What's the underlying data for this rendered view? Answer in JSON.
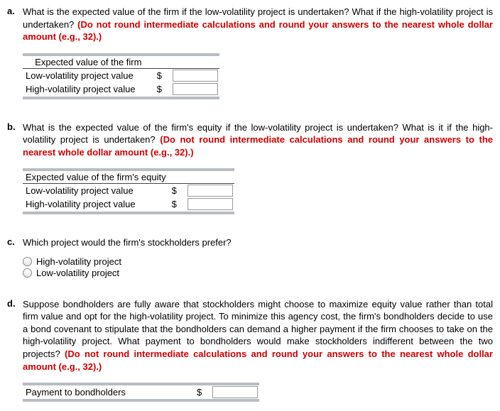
{
  "a": {
    "letter": "a.",
    "prompt_start": "What is the expected value of the firm if the low-volatility project is undertaken? What if the high-volatility project is undertaken? ",
    "hint": "(Do not round intermediate calculations and round your answers to the nearest whole dollar amount (e.g., 32).)",
    "table_title": "Expected value of the firm",
    "row1_label": "Low-volatility project value",
    "row2_label": "High-volatility project value",
    "currency": "$"
  },
  "b": {
    "letter": "b.",
    "prompt_start": "What is the expected value of the firm's equity if the low-volatility project is undertaken? What is it if the high-volatility project is undertaken? ",
    "hint": "(Do not round intermediate calculations and round your answers to the nearest whole dollar amount (e.g., 32).)",
    "table_title": "Expected value of the firm's equity",
    "row1_label": "Low-volatility project value",
    "row2_label": "High-volatility project value",
    "currency": "$"
  },
  "c": {
    "letter": "c.",
    "prompt": "Which project would the firm's stockholders prefer?",
    "opt1": "High-volatility project",
    "opt2": "Low-volatility project"
  },
  "d": {
    "letter": "d.",
    "prompt_start": "Suppose bondholders are fully aware that stockholders might choose to maximize equity value rather than total firm value and opt for the high-volatility project. To minimize this agency cost, the firm's bondholders decide to use a bond covenant to stipulate that the bondholders can demand a higher payment if the firm chooses to take on the high-volatility project. What payment to bondholders would make stockholders indifferent between the two projects? ",
    "hint": "(Do not round intermediate calculations and round your answers to the nearest whole dollar amount (e.g., 32).)",
    "row_label": "Payment to bondholders",
    "currency": "$"
  }
}
